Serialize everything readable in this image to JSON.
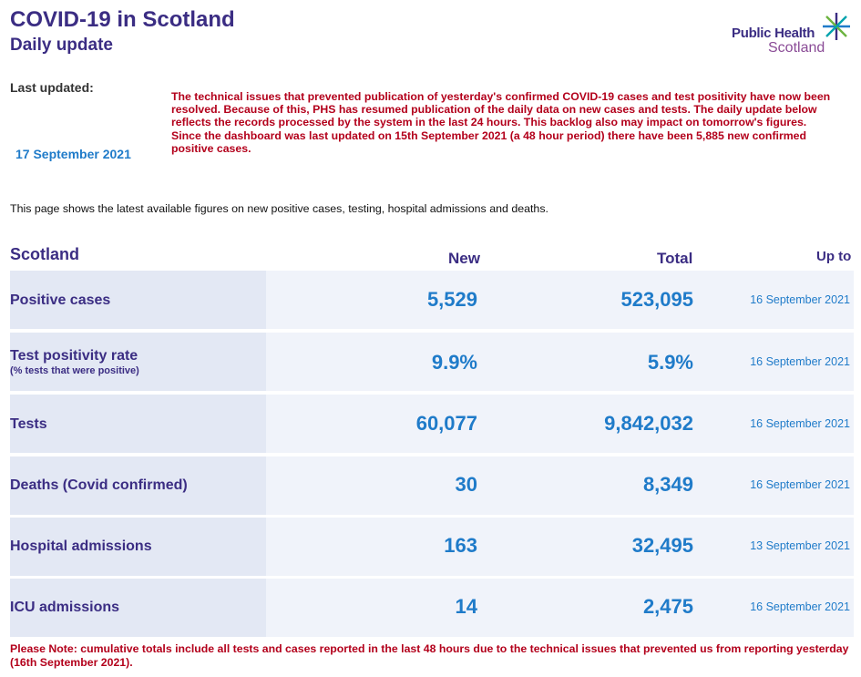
{
  "header": {
    "title": "COVID-19 in Scotland",
    "subtitle": "Daily update",
    "logo_line1": "Public Health",
    "logo_line2": "Scotland"
  },
  "last_updated": {
    "label": "Last updated:",
    "date": "17 September 2021"
  },
  "notice": {
    "para1": "The technical issues that prevented publication of yesterday's confirmed COVID-19 cases and test positivity have now been resolved. Because of this, PHS has resumed publication of the daily data on new cases and tests. The daily update below reflects the records processed by the system in the last 24 hours. This backlog also may impact on tomorrow's figures.",
    "para2": "Since the dashboard was last updated on 15th September 2021 (a 48 hour period) there have been 5,885 new confirmed positive cases."
  },
  "intro": "This page shows the latest available figures on new positive cases, testing, hospital admissions and deaths.",
  "table": {
    "headers": {
      "region": "Scotland",
      "new": "New",
      "total": "Total",
      "up_to": "Up to"
    },
    "rows": [
      {
        "metric": "Positive cases",
        "sub": "",
        "new": "5,529",
        "total": "523,095",
        "up_to": "16 September 2021"
      },
      {
        "metric": "Test positivity rate",
        "sub": "(% tests that were positive)",
        "new": "9.9%",
        "total": "5.9%",
        "up_to": "16 September 2021"
      },
      {
        "metric": "Tests",
        "sub": "",
        "new": "60,077",
        "total": "9,842,032",
        "up_to": "16 September 2021"
      },
      {
        "metric": "Deaths (Covid confirmed)",
        "sub": "",
        "new": "30",
        "total": "8,349",
        "up_to": "16 September 2021"
      },
      {
        "metric": "Hospital admissions",
        "sub": "",
        "new": "163",
        "total": "32,495",
        "up_to": "13 September 2021"
      },
      {
        "metric": "ICU admissions",
        "sub": "",
        "new": "14",
        "total": "2,475",
        "up_to": "16 September 2021"
      }
    ]
  },
  "footnote": "Please Note: cumulative totals include all tests and cases reported in the last 48 hours due to the technical issues that prevented us from reporting yesterday (16th September 2021).",
  "colors": {
    "brand_purple": "#3b2d83",
    "value_blue": "#1f7bc9",
    "alert_red": "#b3001b",
    "row_bg": "#f0f3fa",
    "label_bg": "#e3e8f4"
  }
}
